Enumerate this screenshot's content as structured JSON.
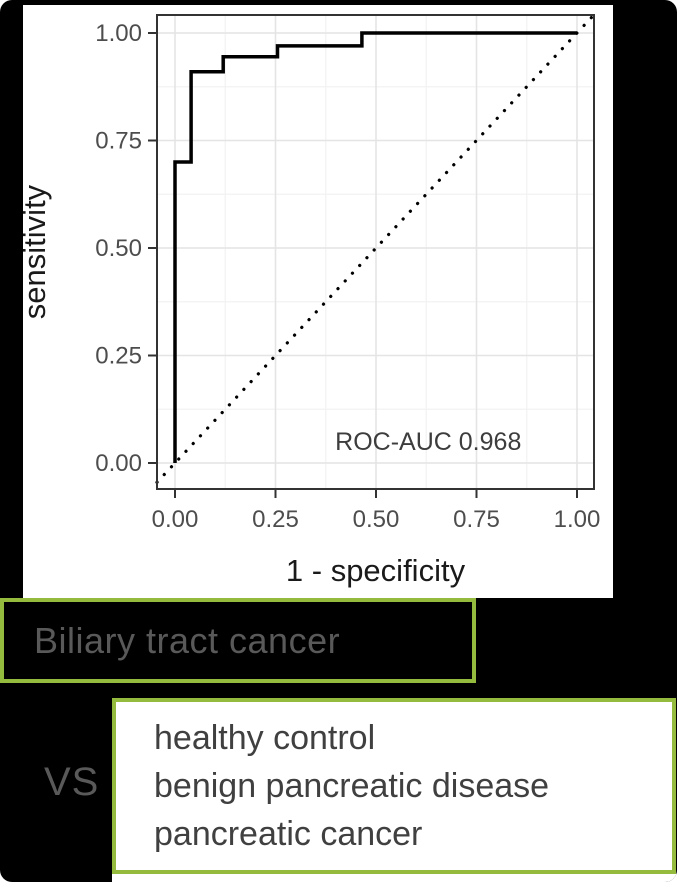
{
  "slide": {
    "background_color": "#000000",
    "accent_green": "#94ba3e",
    "muted_gray_text": "#595959",
    "dark_gray_text": "#404040"
  },
  "chart_data": {
    "type": "line",
    "variant": "roc-step-curve",
    "title": "",
    "xlabel": "1 - specificity",
    "ylabel": "sensitivity",
    "xlim": [
      0,
      1
    ],
    "ylim": [
      0,
      1
    ],
    "x_tick_labels": [
      "0.00",
      "0.25",
      "0.50",
      "0.75",
      "1.00"
    ],
    "y_tick_labels": [
      "0.00",
      "0.25",
      "0.50",
      "0.75",
      "1.00"
    ],
    "grid": "major and minor light-gray gridlines on white panel",
    "legend": "none",
    "roc_auc": 0.968,
    "annotation": {
      "text": "ROC-AUC 0.968",
      "x": 0.63,
      "y": 0.03
    },
    "series": [
      {
        "name": "ROC curve",
        "style": "solid-step",
        "color": "#000000",
        "points": [
          [
            0,
            0
          ],
          [
            0,
            0.7
          ],
          [
            0.04,
            0.7
          ],
          [
            0.04,
            0.91
          ],
          [
            0.12,
            0.91
          ],
          [
            0.12,
            0.945
          ],
          [
            0.255,
            0.945
          ],
          [
            0.255,
            0.97
          ],
          [
            0.465,
            0.97
          ],
          [
            0.465,
            1.0
          ],
          [
            1.0,
            1.0
          ]
        ]
      },
      {
        "name": "chance diagonal",
        "style": "dotted",
        "color": "#000000",
        "points": [
          [
            0,
            0
          ],
          [
            1,
            1
          ]
        ]
      }
    ],
    "text_colors": {
      "axis_title": "#1a1a1a",
      "tick_label": "#4d4d4d",
      "annotation": "#3d3d3d",
      "panel_border": "#333333",
      "grid_major": "#e4e4e4",
      "grid_minor": "#f2f2f2"
    }
  },
  "comparison": {
    "group_label": "Biliary tract cancer",
    "vs_label": "VS",
    "versus_items": [
      "healthy control",
      "benign pancreatic disease",
      "pancreatic cancer"
    ]
  }
}
